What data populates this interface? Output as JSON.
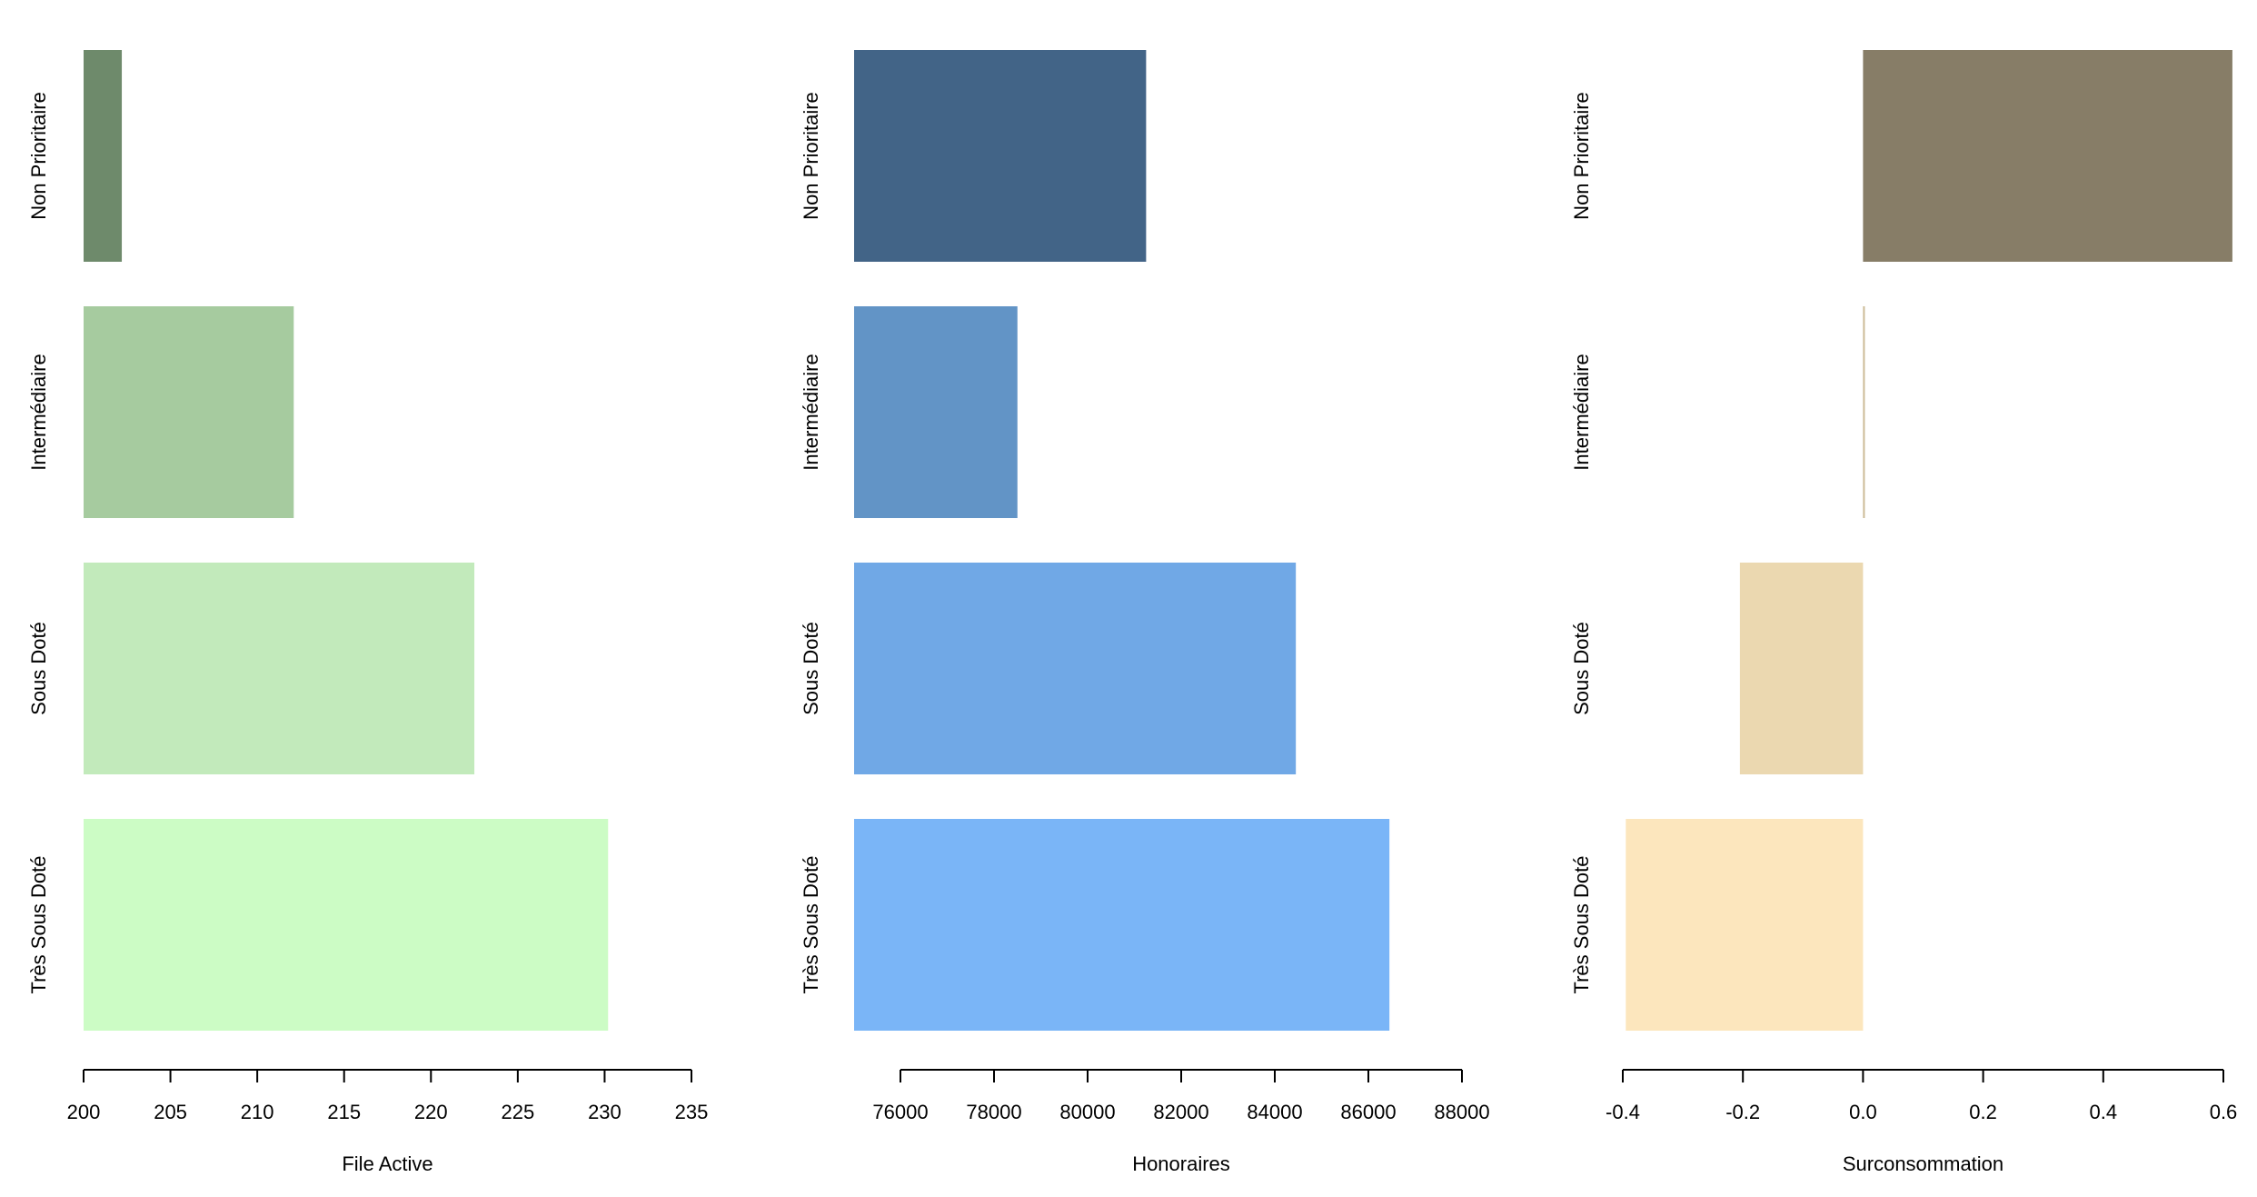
{
  "chart_data": [
    {
      "type": "bar",
      "orientation": "horizontal",
      "categories": [
        "Non Prioritaire",
        "Intermédiaire",
        "Sous Doté",
        "Très Sous Doté"
      ],
      "values": [
        202.2,
        212.1,
        222.5,
        230.2
      ],
      "colors": [
        "#6e8a6b",
        "#a6cb9f",
        "#c2eabb",
        "#ccfcc5"
      ],
      "xlabel": "File Active",
      "xlim": [
        200,
        235
      ],
      "ticks": [
        200,
        205,
        210,
        215,
        220,
        225,
        230,
        235
      ],
      "tick_labels": [
        "200",
        "205",
        "210",
        "215",
        "220",
        "225",
        "230",
        "235"
      ]
    },
    {
      "type": "bar",
      "orientation": "horizontal",
      "categories": [
        "Non Prioritaire",
        "Intermédiaire",
        "Sous Doté",
        "Très Sous Doté"
      ],
      "values": [
        81250,
        78500,
        84450,
        86450
      ],
      "colors": [
        "#426487",
        "#6294c6",
        "#70a8e6",
        "#7ab5f7"
      ],
      "xlabel": "Honoraires",
      "xlim": [
        74000,
        88000
      ],
      "ticks": [
        76000,
        78000,
        80000,
        82000,
        84000,
        86000,
        88000
      ],
      "tick_labels": [
        "76000",
        "78000",
        "80000",
        "82000",
        "84000",
        "86000",
        "88000"
      ]
    },
    {
      "type": "bar",
      "orientation": "horizontal",
      "categories": [
        "Non Prioritaire",
        "Intermédiaire",
        "Sous Doté",
        "Très Sous Doté"
      ],
      "values": [
        0.615,
        0.002,
        -0.205,
        -0.395
      ],
      "colors": [
        "#877d67",
        "#ccbb97",
        "#ebd8b0",
        "#fce6bd"
      ],
      "xlabel": "Surconsommation",
      "xlim": [
        -0.4,
        0.6
      ],
      "ticks": [
        -0.4,
        -0.2,
        0.0,
        0.2,
        0.4,
        0.6
      ],
      "tick_labels": [
        "-0.4",
        "-0.2",
        "0.0",
        "0.2",
        "0.4",
        "0.6"
      ]
    }
  ]
}
